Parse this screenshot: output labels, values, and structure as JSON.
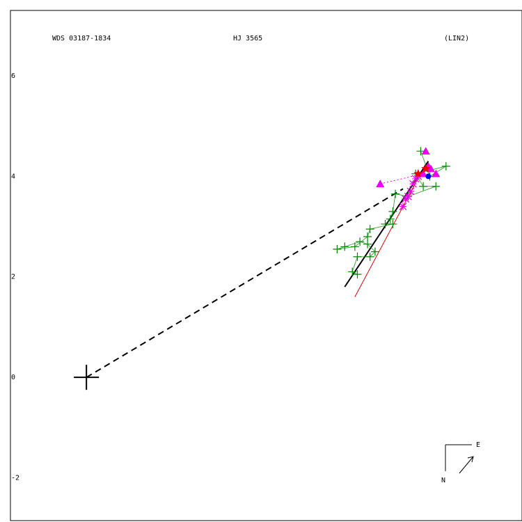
{
  "chart_data": {
    "type": "scatter",
    "header": {
      "left": "WDS 03187-1834",
      "center": "HJ 3565",
      "right": "(LIN2)"
    },
    "axis": {
      "xlim": [
        -1.5,
        8.6
      ],
      "ylim": [
        -2.85,
        7.3
      ],
      "y_ticks": [
        6,
        4,
        2,
        0,
        -2
      ]
    },
    "primary": {
      "x": 0,
      "y": 0
    },
    "orientation": {
      "north_label": "N",
      "east_label": "E"
    },
    "colors": {
      "green": "#008800",
      "magenta": "#ee00ee",
      "red": "#ee0000",
      "blue": "#0000ee",
      "black": "#000000"
    },
    "dashed_line": {
      "from": [
        0,
        0
      ],
      "to": [
        6.25,
        3.75
      ]
    },
    "orbit_path": {
      "from": [
        5.1,
        1.8
      ],
      "to": [
        6.75,
        4.3
      ]
    },
    "red_line": {
      "from": [
        5.3,
        1.6
      ],
      "to": [
        6.7,
        4.25
      ]
    },
    "green_plus": [
      [
        6.6,
        4.5
      ],
      [
        6.78,
        4.0
      ],
      [
        7.1,
        4.2
      ],
      [
        6.5,
        4.05
      ],
      [
        6.65,
        3.8
      ],
      [
        6.9,
        3.8
      ],
      [
        6.35,
        3.6
      ],
      [
        6.1,
        3.65
      ],
      [
        6.05,
        3.3
      ],
      [
        6.0,
        3.15
      ],
      [
        5.9,
        3.05
      ],
      [
        6.05,
        3.05
      ],
      [
        5.6,
        2.95
      ],
      [
        5.55,
        2.8
      ],
      [
        5.3,
        2.6
      ],
      [
        4.95,
        2.55
      ],
      [
        5.1,
        2.6
      ],
      [
        5.4,
        2.7
      ],
      [
        5.55,
        2.65
      ],
      [
        5.7,
        2.5
      ],
      [
        5.6,
        2.4
      ],
      [
        5.35,
        2.4
      ],
      [
        5.25,
        2.1
      ],
      [
        5.35,
        2.05
      ]
    ],
    "magenta_triangles": [
      [
        6.7,
        4.5
      ],
      [
        6.75,
        4.2
      ],
      [
        6.8,
        4.15
      ],
      [
        6.9,
        4.05
      ],
      [
        5.8,
        3.85
      ],
      [
        6.65,
        4.05
      ]
    ],
    "magenta_stars": [
      [
        6.45,
        3.85
      ],
      [
        6.4,
        3.7
      ],
      [
        6.3,
        3.55
      ],
      [
        6.25,
        3.4
      ],
      [
        6.35,
        3.6
      ],
      [
        6.5,
        3.95
      ],
      [
        6.55,
        4.0
      ]
    ],
    "red_stars": [
      [
        6.55,
        4.05
      ],
      [
        6.7,
        4.15
      ]
    ],
    "blue_dots": [
      [
        6.75,
        4.0
      ]
    ]
  }
}
